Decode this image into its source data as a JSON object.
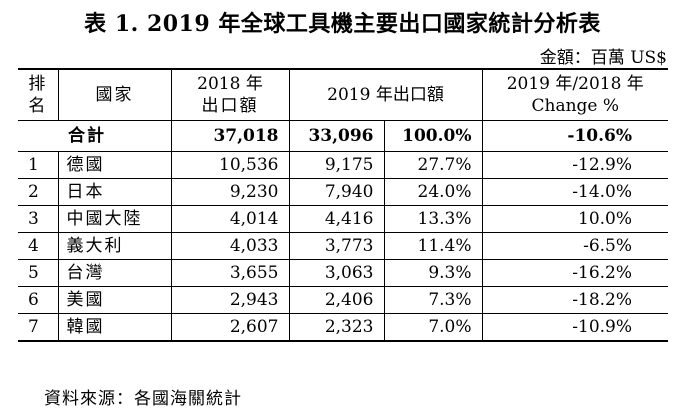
{
  "title": "表 1. 2019 年全球工具機主要出口國家統計分析表",
  "unit": "金額：百萬 US$",
  "headers": {
    "rank": "排名",
    "country": "國家",
    "y2018_line1": "2018 年",
    "y2018_line2": "出口額",
    "y2019": "2019 年出口額",
    "change_line1": "2019 年/2018 年",
    "change_line2": "Change %"
  },
  "total": {
    "label": "合計",
    "v2018": "37,018",
    "v2019": "33,096",
    "share": "100.0%",
    "change": "-10.6%"
  },
  "rows": [
    {
      "rank": "1",
      "country": "德國",
      "v2018": "10,536",
      "v2019": "9,175",
      "share": "27.7%",
      "change": "-12.9%"
    },
    {
      "rank": "2",
      "country": "日本",
      "v2018": "9,230",
      "v2019": "7,940",
      "share": "24.0%",
      "change": "-14.0%"
    },
    {
      "rank": "3",
      "country": "中國大陸",
      "v2018": "4,014",
      "v2019": "4,416",
      "share": "13.3%",
      "change": "10.0%"
    },
    {
      "rank": "4",
      "country": "義大利",
      "v2018": "4,033",
      "v2019": "3,773",
      "share": "11.4%",
      "change": "-6.5%"
    },
    {
      "rank": "5",
      "country": "台灣",
      "v2018": "3,655",
      "v2019": "3,063",
      "share": "9.3%",
      "change": "-16.2%"
    },
    {
      "rank": "6",
      "country": "美國",
      "v2018": "2,943",
      "v2019": "2,406",
      "share": "7.3%",
      "change": "-18.2%"
    },
    {
      "rank": "7",
      "country": "韓國",
      "v2018": "2,607",
      "v2019": "2,323",
      "share": "7.0%",
      "change": "-10.9%"
    }
  ],
  "source": "資料來源：各國海關統計"
}
